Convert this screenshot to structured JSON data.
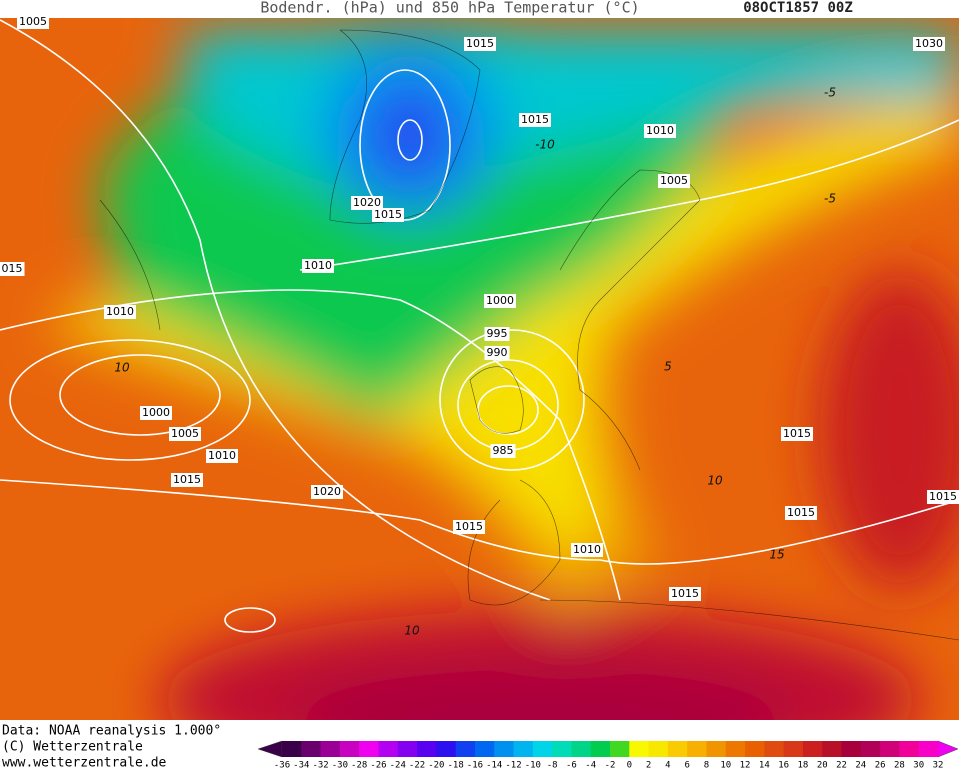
{
  "header": {
    "title": "Bodendr. (hPa) und 850 hPa Temperatur (°C)",
    "date": "08OCT1857 00Z"
  },
  "isobar_labels": [
    "1005",
    "1015",
    "1030",
    "1015",
    "1010",
    "1005",
    "1020",
    "1015",
    "1010",
    "015",
    "1010",
    "1000",
    "995",
    "990",
    "1000",
    "1005",
    "1010",
    "1015",
    "1020",
    "985",
    "1015",
    "1010",
    "1015",
    "1015",
    "1015",
    "1015"
  ],
  "temperature_labels": [
    "-5",
    "-10",
    "-5",
    "5",
    "10",
    "10",
    "15",
    "10"
  ],
  "footer": [
    "Data: NOAA reanalysis 1.000°",
    "(C) Wetterzentrale",
    "www.wetterzentrale.de"
  ],
  "colorbar": {
    "labels": [
      "-36",
      "-34",
      "-32",
      "-30",
      "-28",
      "-26",
      "-24",
      "-22",
      "-20",
      "-18",
      "-16",
      "-14",
      "-12",
      "-10",
      "-8",
      "-6",
      "-4",
      "-2",
      "0",
      "2",
      "4",
      "6",
      "8",
      "10",
      "12",
      "14",
      "16",
      "18",
      "20",
      "22",
      "24",
      "26",
      "28",
      "30",
      "32"
    ],
    "colors": [
      "#3a0048",
      "#6a006e",
      "#9a0096",
      "#c800c0",
      "#f000f0",
      "#b400f0",
      "#8400f0",
      "#5800f0",
      "#2c10f0",
      "#1040f0",
      "#0068f0",
      "#0090f0",
      "#00b4f0",
      "#00d4e8",
      "#00dcb8",
      "#00d488",
      "#00cc50",
      "#40d820",
      "#f8f800",
      "#f8e800",
      "#f8cc00",
      "#f8b000",
      "#f09400",
      "#ec7800",
      "#e86000",
      "#e04c10",
      "#d83818",
      "#cc2020",
      "#b81028",
      "#a8003c",
      "#b00058",
      "#d00078",
      "#f00098",
      "#f800c8"
    ]
  }
}
